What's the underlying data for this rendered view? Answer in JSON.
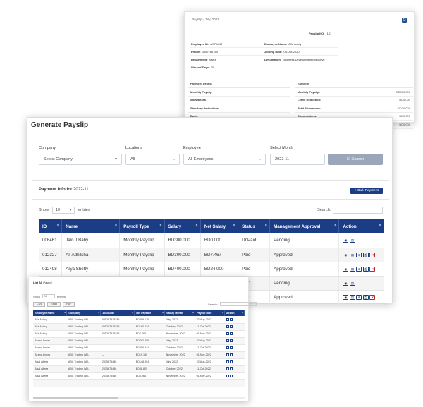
{
  "payslip": {
    "title": "Payslip - July, 2022",
    "info_rows": [
      [
        {
          "label": "Employee ID:",
          "value": "ASTA443"
        },
        {
          "label": "Employee Name:",
          "value": "Affa Ashiq"
        }
      ],
      [
        {
          "label": "Phone:",
          "value": "0502766789"
        },
        {
          "label": "Joining Date:",
          "value": "05-Oct-2020"
        }
      ],
      [
        {
          "label": "Department:",
          "value": "Sales"
        },
        {
          "label": "Designation:",
          "value": "Business Development Executive"
        }
      ],
      [
        {
          "label": "Worked Days:",
          "value": "30"
        },
        {
          "label": "",
          "value": ""
        }
      ]
    ],
    "payslip_no": {
      "label": "Payslip NO:",
      "value": "167"
    },
    "payment_details_header": "Payment Details",
    "payment_details": [
      "Monthly Payslip",
      "Allowances",
      "Statutory deductions",
      "Basic"
    ],
    "earnings_header": "Earnings",
    "earnings": [
      {
        "label": "Monthly Payslip:",
        "value": "BD300.000"
      },
      {
        "label": "Leave Deduction:",
        "value": "BD0.000"
      },
      {
        "label": "Total Allowances:",
        "value": "BD20.000"
      },
      {
        "label": "Commissions:",
        "value": "BD0.000"
      },
      {
        "label": "Total Loan:",
        "value": "BD0.000"
      }
    ]
  },
  "generate": {
    "title": "Generate Payslip",
    "filters": {
      "company_label": "Company",
      "company_value": "Select Company",
      "locations_label": "Locations",
      "locations_value": "All",
      "employee_label": "Employee",
      "employee_value": "All Employees",
      "month_label": "Select Month",
      "month_value": "2022-11",
      "search_label": "Search"
    },
    "payment_info_label": "Payment Info for",
    "payment_info_month": "2022-11",
    "bulk_payment_label": "+ Bulk Payment",
    "show_label": "Show",
    "show_value": "10",
    "entries_label": "entries",
    "search_label": "Search:",
    "columns": [
      "ID",
      "Name",
      "Payroll Type",
      "Salary",
      "Net Salary",
      "Status",
      "Management Approval",
      "Action"
    ],
    "rows": [
      {
        "id": "006461",
        "name": "Jain J Baby",
        "type": "Monthly Payslip",
        "salary": "BD300.000",
        "net": "BD0.000",
        "status": "UnPaid",
        "approval": "Pending",
        "paid": false,
        "delete": false
      },
      {
        "id": "012327",
        "name": "Ali Adhilsha",
        "type": "Monthly Payslip",
        "salary": "BD300.000",
        "net": "BD7.467",
        "status": "Paid",
        "approval": "Approved",
        "paid": true,
        "delete": true
      },
      {
        "id": "012498",
        "name": "Arya Shetty",
        "type": "Monthly Payslip",
        "salary": "BD400.000",
        "net": "BD24.000",
        "status": "Paid",
        "approval": "Approved",
        "paid": true,
        "delete": true
      },
      {
        "id": "",
        "name": "",
        "type": "",
        "salary": "",
        "net": "",
        "status": "Paid",
        "approval": "Pending",
        "paid": false,
        "delete": false
      },
      {
        "id": "",
        "name": "",
        "type": "",
        "salary": "",
        "net": "",
        "status": "Paid",
        "approval": "Approved",
        "paid": true,
        "delete": true
      }
    ]
  },
  "list_all": {
    "title_bold": "List All",
    "title_rest": "Payroll",
    "show_label": "Show",
    "show_value": "10",
    "entries_label": "entries",
    "buttons": [
      "CSV",
      "Excel",
      "PDF"
    ],
    "search_label": "Search:",
    "columns": [
      "Employee Name",
      "Company",
      "Account#",
      "Net Payable",
      "Salary Month",
      "Payroll Date",
      "Action"
    ],
    "rows": [
      [
        "Affa Ashiq",
        "ABC Trading WLL",
        "005287913386",
        "BD309.170",
        "July, 2022",
        "22-Aug-2022"
      ],
      [
        "Affa Ashiq",
        "ABC Trading WLL",
        "005287913386",
        "BD100.024",
        "October, 2022",
        "11-Oct-2022"
      ],
      [
        "Affa Ashiq",
        "ABC Trading WLL",
        "005287913386",
        "BD7.467",
        "November, 2022",
        "01-Nov-2022"
      ],
      [
        "Afrana Anees",
        "ABC Trading WLL",
        "--",
        "BD792.265",
        "July, 2022",
        "22-Aug-2022"
      ],
      [
        "Afrana Anees",
        "ABC Trading WLL",
        "--",
        "BD206.941",
        "October, 2022",
        "11-Oct-2022"
      ],
      [
        "Afrana Anees",
        "ABC Trading WLL",
        "--",
        "BD19.130",
        "November, 2022",
        "01-Nov-2022"
      ],
      [
        "Afsal Alfeez",
        "ABC Trading WLL",
        "2335675446",
        "BD148.394",
        "July, 2022",
        "22-Aug-2022"
      ],
      [
        "Afsal Alfeez",
        "ABC Trading WLL",
        "2335675446",
        "BD48.825",
        "October, 2022",
        "11-Oct-2022"
      ],
      [
        "Afsal Alfeez",
        "ABC Trading WLL",
        "2335675446",
        "BD4.964",
        "November, 2022",
        "01-Nov-2022"
      ],
      [
        "",
        "",
        "",
        "",
        "",
        ""
      ]
    ]
  },
  "colors": {
    "primary": "#1b3d85",
    "paid": "#1fae3e",
    "delete": "#c02424",
    "search_btn": "#9aa7b8"
  }
}
